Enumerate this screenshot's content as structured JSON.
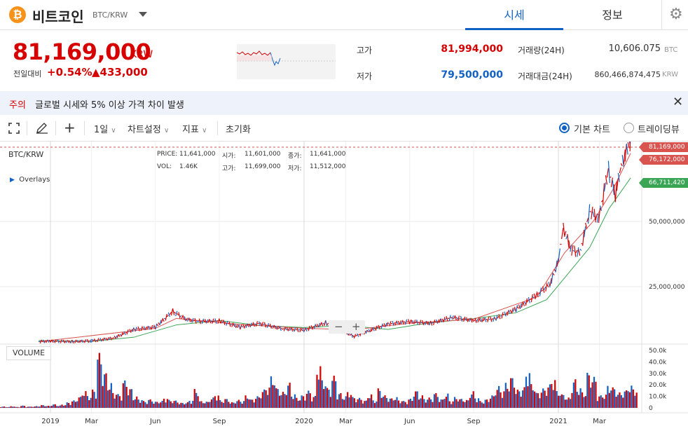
{
  "header": {
    "coin_symbol": "₿",
    "coin_name": "비트코인",
    "pair": "BTC/KRW",
    "tabs": [
      {
        "label": "시세",
        "active": true
      },
      {
        "label": "정보",
        "active": false
      }
    ],
    "settings_icon": "gear-icon"
  },
  "price": {
    "current": "81,169,000",
    "unit": "KRW",
    "change_label": "전일대비",
    "change_pct": "+0.54%",
    "change_abs": "▲433,000"
  },
  "stats": {
    "high_label": "고가",
    "high": "81,994,000",
    "low_label": "저가",
    "low": "79,500,000",
    "volume_label": "거래량(24H)",
    "volume": "10,606.075",
    "volume_unit": "BTC",
    "amount_label": "거래대금(24H)",
    "amount": "860,466,874,475",
    "amount_unit": "KRW"
  },
  "notice": {
    "tag": "주의",
    "text": "글로벌 시세와 5% 이상 가격 차이 발생"
  },
  "toolbar": {
    "interval": "1일",
    "chart_settings": "차트설정",
    "indicators": "지표",
    "reset": "초기화",
    "basic_chart": "기본 차트",
    "tradingview": "트레이딩뷰"
  },
  "overlay": {
    "pair": "BTC/KRW",
    "overlays": "Overlays",
    "price_label": "PRICE:",
    "price_val": "11,641,000",
    "vol_label": "VOL:",
    "vol_val": "1.46K",
    "open_label": "시가:",
    "open_val": "11,601,000",
    "close_label": "종가:",
    "close_val": "11,641,000",
    "high_label": "고가:",
    "high_val": "11,699,000",
    "low_label": "저가:",
    "low_val": "11,512,000",
    "volume_title": "VOLUME",
    "zoom_out": "−",
    "zoom_in": "+"
  },
  "chart_data": {
    "type": "line",
    "series": [
      {
        "values": [
          "2018-12-15",
          3900000,
          "2019-01-01",
          4100000,
          "2019-02-01",
          3900000,
          "2019-03-01",
          4200000,
          "2019-04-01",
          5200000,
          "2019-05-01",
          8600000,
          "2019-06-01",
          9500000,
          "2019-06-26",
          15500000,
          "2019-07-15",
          12500000,
          "2019-08-01",
          11700000,
          "2019-09-01",
          11800000,
          "2019-10-01",
          9500000,
          "2019-10-28",
          10900000,
          "2019-12-01",
          8800000,
          "2020-01-01",
          8300000,
          "2020-02-01",
          11100000,
          "2020-03-13",
          5900000,
          "2020-04-01",
          7800000,
          "2020-05-01",
          10700000,
          "2020-06-01",
          11600000,
          "2020-07-01",
          10900000,
          "2020-08-01",
          13200000,
          "2020-09-01",
          12000000,
          "2020-10-01",
          12600000,
          "2020-11-01",
          16400000,
          "2020-12-01",
          21800000,
          "2020-12-20",
          26000000,
          "2021-01-01",
          35000000,
          "2021-01-08",
          47500000,
          "2021-01-20",
          39000000,
          "2021-02-01",
          38000000,
          "2021-02-15",
          54000000,
          "2021-02-28",
          51000000,
          "2021-03-14",
          70000000,
          "2021-03-24",
          60000000,
          "2021-04-01",
          71000000,
          "2021-04-13",
          80000000,
          "2021-04-15",
          81169000
        ]
      },
      {
        "values": [
          "2018-12-15",
          4300000,
          "2019-03-01",
          4000000,
          "2019-05-01",
          5600000,
          "2019-07-01",
          10300000,
          "2019-09-01",
          12000000,
          "2019-11-01",
          10000000,
          "2020-01-01",
          9300000,
          "2020-03-01",
          10100000,
          "2020-05-01",
          8600000,
          "2020-07-01",
          11200000,
          "2020-09-01",
          12700000,
          "2020-11-01",
          15000000,
          "2020-12-15",
          20000000,
          "2021-01-15",
          30000000,
          "2021-02-15",
          40000000,
          "2021-03-15",
          55000000,
          "2021-04-15",
          66711420
        ]
      },
      {
        "values": [
          "2018-12-15",
          3900000,
          "2019-06-01",
          9000000,
          "2019-07-01",
          12800000,
          "2019-10-01",
          10500000,
          "2020-01-01",
          9000000,
          "2020-03-15",
          8500000,
          "2020-06-01",
          11000000,
          "2020-09-01",
          12500000,
          "2020-12-01",
          21000000,
          "2021-01-10",
          38000000,
          "2021-02-20",
          50000000,
          "2021-03-20",
          62000000,
          "2021-04-15",
          76172000
        ]
      }
    ],
    "x_ticks": [
      "2019",
      "Mar",
      "Jun",
      "Sep",
      "2020",
      "Mar",
      "Jun",
      "Sep",
      "2021",
      "Mar"
    ],
    "y_ticks": [
      "25,000,000",
      "50,000,000"
    ],
    "volume_ticks": [
      "50.0k",
      "40.0k",
      "30.0k",
      "20.0k",
      "10.0k",
      "0"
    ],
    "volume_ylim": [
      0,
      50000
    ],
    "price_tags": [
      "81,169,000",
      "76,172,000",
      "66,711,420"
    ],
    "colors": {
      "up": "#d60000",
      "down": "#1261c4",
      "ma_red": "#d9534f",
      "ma_green": "#3aa655"
    },
    "grid": true,
    "volume_values": [
      1200,
      900,
      1500,
      800,
      2000,
      1100,
      1300,
      1600,
      2500,
      1800,
      3200,
      2200,
      3000,
      4800,
      6500,
      9800,
      15000,
      11000,
      16000,
      48000,
      31000,
      22000,
      14000,
      12000,
      24000,
      17000,
      10000,
      8000,
      6000,
      7500,
      5500,
      6200,
      9000,
      7000,
      6500,
      4500,
      5000,
      7000,
      16500,
      6000,
      5500,
      9000,
      12000,
      6800,
      8000,
      5000,
      7000,
      6500,
      11000,
      7500,
      10200,
      16000,
      19000,
      28000,
      17500,
      14000,
      22000,
      12500,
      9000,
      11000,
      15000,
      10500,
      38000,
      25000,
      17500,
      28000,
      13000,
      10500,
      14500,
      9500,
      8700,
      6500,
      12000,
      7000,
      17000,
      11000,
      8500,
      9500,
      7000,
      6000,
      8000,
      15000,
      11000,
      8500,
      9000,
      13000,
      7600,
      12500,
      6500,
      9500,
      8000,
      7000,
      14500,
      9500,
      6000,
      7500,
      11000,
      19000,
      16000,
      22000,
      27000,
      16000,
      18000,
      33000,
      21000,
      13500,
      17000,
      20500,
      26000,
      15000,
      12000,
      9000,
      25000,
      18000,
      14000,
      31000,
      27000,
      11000,
      12000,
      20000,
      18000,
      13500,
      15500,
      20000,
      17000
    ]
  }
}
